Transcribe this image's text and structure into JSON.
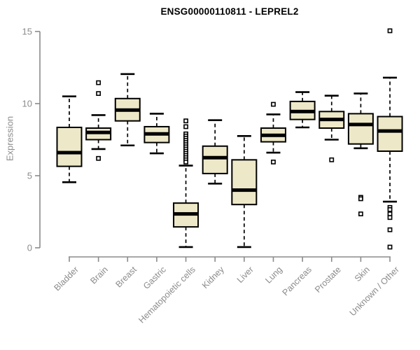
{
  "chart_data": {
    "type": "boxplot",
    "title": "ENSG00000110811 - LEPREL2",
    "ylabel": "Expression",
    "xlabel": "",
    "ylim": [
      0,
      15
    ],
    "yticks": [
      0,
      5,
      10,
      15
    ],
    "grid": false,
    "legend_position": "none",
    "colors": {
      "box_fill": "#EDE8C8",
      "box_stroke": "#000000",
      "median": "#000000",
      "whisker": "#000000",
      "outlier_stroke": "#000000",
      "axis": "#8B8B8B",
      "tick_text": "#8B8B8B",
      "title_text": "#000000",
      "background": "#FFFFFF"
    },
    "categories": [
      "Bladder",
      "Brain",
      "Breast",
      "Gastric",
      "Hematopoietic cells",
      "Kidney",
      "Liver",
      "Lung",
      "Pancreas",
      "Prostate",
      "Skin",
      "Unknown / Other"
    ],
    "boxes": [
      {
        "category": "Bladder",
        "whisker_low": 4.55,
        "q1": 5.65,
        "median": 6.6,
        "q3": 8.35,
        "whisker_high": 10.5,
        "outliers": []
      },
      {
        "category": "Brain",
        "whisker_low": 6.85,
        "q1": 7.5,
        "median": 8.0,
        "q3": 8.3,
        "whisker_high": 9.2,
        "outliers": [
          11.45,
          10.7,
          6.2
        ]
      },
      {
        "category": "Breast",
        "whisker_low": 7.1,
        "q1": 8.8,
        "median": 9.55,
        "q3": 10.35,
        "whisker_high": 12.05,
        "outliers": []
      },
      {
        "category": "Gastric",
        "whisker_low": 6.55,
        "q1": 7.3,
        "median": 7.9,
        "q3": 8.4,
        "whisker_high": 9.3,
        "outliers": []
      },
      {
        "category": "Hematopoietic cells",
        "whisker_low": 0.05,
        "q1": 1.45,
        "median": 2.35,
        "q3": 3.1,
        "whisker_high": 5.7,
        "outliers": [
          8.8,
          8.4,
          7.9,
          7.75,
          7.6,
          7.45,
          7.3,
          7.15,
          7.0,
          6.85,
          6.7,
          6.55,
          6.4,
          6.25,
          6.1,
          5.95
        ]
      },
      {
        "category": "Kidney",
        "whisker_low": 4.45,
        "q1": 5.15,
        "median": 6.25,
        "q3": 7.05,
        "whisker_high": 8.85,
        "outliers": []
      },
      {
        "category": "Liver",
        "whisker_low": 0.05,
        "q1": 3.0,
        "median": 4.0,
        "q3": 6.1,
        "whisker_high": 7.75,
        "outliers": []
      },
      {
        "category": "Lung",
        "whisker_low": 6.6,
        "q1": 7.35,
        "median": 7.8,
        "q3": 8.3,
        "whisker_high": 9.25,
        "outliers": [
          9.95,
          5.95
        ]
      },
      {
        "category": "Pancreas",
        "whisker_low": 8.35,
        "q1": 8.9,
        "median": 9.45,
        "q3": 10.15,
        "whisker_high": 10.8,
        "outliers": []
      },
      {
        "category": "Prostate",
        "whisker_low": 7.5,
        "q1": 8.3,
        "median": 8.9,
        "q3": 9.45,
        "whisker_high": 10.55,
        "outliers": [
          6.1
        ]
      },
      {
        "category": "Skin",
        "whisker_low": 6.9,
        "q1": 7.2,
        "median": 8.55,
        "q3": 9.3,
        "whisker_high": 10.7,
        "outliers": [
          3.5,
          3.4,
          2.35
        ]
      },
      {
        "category": "Unknown / Other",
        "whisker_low": 3.2,
        "q1": 6.7,
        "median": 8.1,
        "q3": 9.1,
        "whisker_high": 11.8,
        "outliers": [
          15.05,
          2.8,
          2.65,
          2.35,
          2.1,
          1.25,
          0.05
        ]
      }
    ]
  }
}
